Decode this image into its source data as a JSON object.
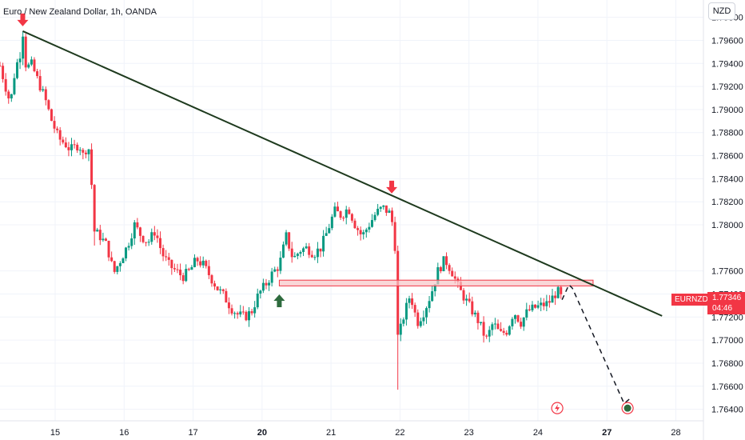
{
  "chart_data": {
    "type": "candlestick",
    "title": "Euro / New Zealand Dollar, 1h, OANDA",
    "currency": "NZD",
    "symbol": "EURNZD",
    "last_price": "1.77346",
    "countdown": "04:46",
    "ylim": [
      1.763,
      1.7995
    ],
    "y_ticks": [
      "1.79800",
      "1.79600",
      "1.79400",
      "1.79200",
      "1.79000",
      "1.78800",
      "1.78600",
      "1.78400",
      "1.78200",
      "1.78000",
      "1.77600",
      "1.77400",
      "1.77200",
      "1.77000",
      "1.76800",
      "1.76600",
      "1.76400"
    ],
    "x_ticks": [
      {
        "label": "15",
        "pos": 0.5,
        "bold": false
      },
      {
        "label": "16",
        "pos": 1.5,
        "bold": false
      },
      {
        "label": "17",
        "pos": 2.5,
        "bold": false
      },
      {
        "label": "20",
        "pos": 3.5,
        "bold": true
      },
      {
        "label": "21",
        "pos": 4.5,
        "bold": false
      },
      {
        "label": "22",
        "pos": 5.5,
        "bold": false
      },
      {
        "label": "23",
        "pos": 6.5,
        "bold": false
      },
      {
        "label": "24",
        "pos": 7.5,
        "bold": false
      },
      {
        "label": "27",
        "pos": 8.5,
        "bold": true
      },
      {
        "label": "28",
        "pos": 9.5,
        "bold": false
      }
    ],
    "x_range": [
      -0.3,
      9.9
    ],
    "path_points": [
      [
        -0.3,
        1.7938
      ],
      [
        -0.22,
        1.792
      ],
      [
        -0.15,
        1.7905
      ],
      [
        -0.08,
        1.7935
      ],
      [
        0.0,
        1.795
      ],
      [
        0.03,
        1.7968
      ],
      [
        0.08,
        1.7935
      ],
      [
        0.15,
        1.794
      ],
      [
        0.25,
        1.7925
      ],
      [
        0.35,
        1.791
      ],
      [
        0.45,
        1.789
      ],
      [
        0.55,
        1.7875
      ],
      [
        0.65,
        1.787
      ],
      [
        0.72,
        1.7865
      ],
      [
        0.8,
        1.7868
      ],
      [
        0.85,
        1.787
      ],
      [
        0.9,
        1.786
      ],
      [
        0.98,
        1.787
      ],
      [
        1.02,
        1.7845
      ],
      [
        1.06,
        1.7795
      ],
      [
        1.15,
        1.779
      ],
      [
        1.25,
        1.7782
      ],
      [
        1.35,
        1.7758
      ],
      [
        1.45,
        1.777
      ],
      [
        1.55,
        1.7782
      ],
      [
        1.65,
        1.78
      ],
      [
        1.75,
        1.779
      ],
      [
        1.85,
        1.7785
      ],
      [
        1.95,
        1.7795
      ],
      [
        2.05,
        1.7775
      ],
      [
        2.15,
        1.7765
      ],
      [
        2.25,
        1.776
      ],
      [
        2.35,
        1.7755
      ],
      [
        2.45,
        1.776
      ],
      [
        2.55,
        1.777
      ],
      [
        2.65,
        1.7765
      ],
      [
        2.75,
        1.7755
      ],
      [
        2.85,
        1.7745
      ],
      [
        2.95,
        1.7738
      ],
      [
        3.05,
        1.7728
      ],
      [
        3.15,
        1.7722
      ],
      [
        3.25,
        1.772
      ],
      [
        3.35,
        1.7725
      ],
      [
        3.45,
        1.774
      ],
      [
        3.55,
        1.7748
      ],
      [
        3.65,
        1.7758
      ],
      [
        3.75,
        1.7765
      ],
      [
        3.85,
        1.779
      ],
      [
        3.95,
        1.777
      ],
      [
        4.05,
        1.7778
      ],
      [
        4.15,
        1.778
      ],
      [
        4.25,
        1.7775
      ],
      [
        4.35,
        1.778
      ],
      [
        4.45,
        1.7795
      ],
      [
        4.55,
        1.7812
      ],
      [
        4.65,
        1.7808
      ],
      [
        4.75,
        1.7815
      ],
      [
        4.85,
        1.78
      ],
      [
        4.95,
        1.779
      ],
      [
        5.05,
        1.78
      ],
      [
        5.15,
        1.781
      ],
      [
        5.25,
        1.7815
      ],
      [
        5.35,
        1.781
      ],
      [
        5.42,
        1.7795
      ],
      [
        5.47,
        1.77
      ],
      [
        5.55,
        1.772
      ],
      [
        5.65,
        1.774
      ],
      [
        5.75,
        1.7715
      ],
      [
        5.85,
        1.7725
      ],
      [
        5.95,
        1.774
      ],
      [
        6.05,
        1.776
      ],
      [
        6.15,
        1.777
      ],
      [
        6.25,
        1.776
      ],
      [
        6.35,
        1.7745
      ],
      [
        6.45,
        1.7735
      ],
      [
        6.55,
        1.7725
      ],
      [
        6.65,
        1.7715
      ],
      [
        6.75,
        1.77
      ],
      [
        6.85,
        1.7715
      ],
      [
        6.95,
        1.7705
      ],
      [
        7.05,
        1.7708
      ],
      [
        7.15,
        1.7725
      ],
      [
        7.25,
        1.7715
      ],
      [
        7.35,
        1.7725
      ],
      [
        7.45,
        1.7728
      ],
      [
        7.55,
        1.773
      ],
      [
        7.65,
        1.7732
      ],
      [
        7.75,
        1.774
      ],
      [
        7.8,
        1.7742
      ],
      [
        7.85,
        1.7735
      ]
    ],
    "trendline": {
      "from": [
        0.03,
        1.7968
      ],
      "to": [
        9.3,
        1.7721
      ]
    },
    "projection": [
      [
        7.85,
        1.7735
      ],
      [
        7.95,
        1.7748
      ],
      [
        8.0,
        1.7745
      ],
      [
        8.75,
        1.7645
      ],
      [
        8.85,
        1.765
      ]
    ],
    "zone": {
      "x0": 3.75,
      "x1": 8.3,
      "y0": 1.77505,
      "y1": 1.7751
    },
    "markers": [
      {
        "type": "down",
        "x": 0.03,
        "y": 1.7968
      },
      {
        "type": "down",
        "x": 5.38,
        "y": 1.7823
      },
      {
        "type": "up",
        "x": 3.75,
        "y": 1.7748
      }
    ],
    "event_icons": [
      {
        "name": "lightning-icon",
        "x": 7.78,
        "y": 1.7641
      },
      {
        "name": "target-icon",
        "x": 8.8,
        "y": 1.7641
      }
    ],
    "colors": {
      "up": "#089981",
      "down": "#f23645",
      "trendline": "#1e3a1e",
      "zone_fill": "#f7c6c8",
      "zone_stroke": "#f23645"
    }
  }
}
